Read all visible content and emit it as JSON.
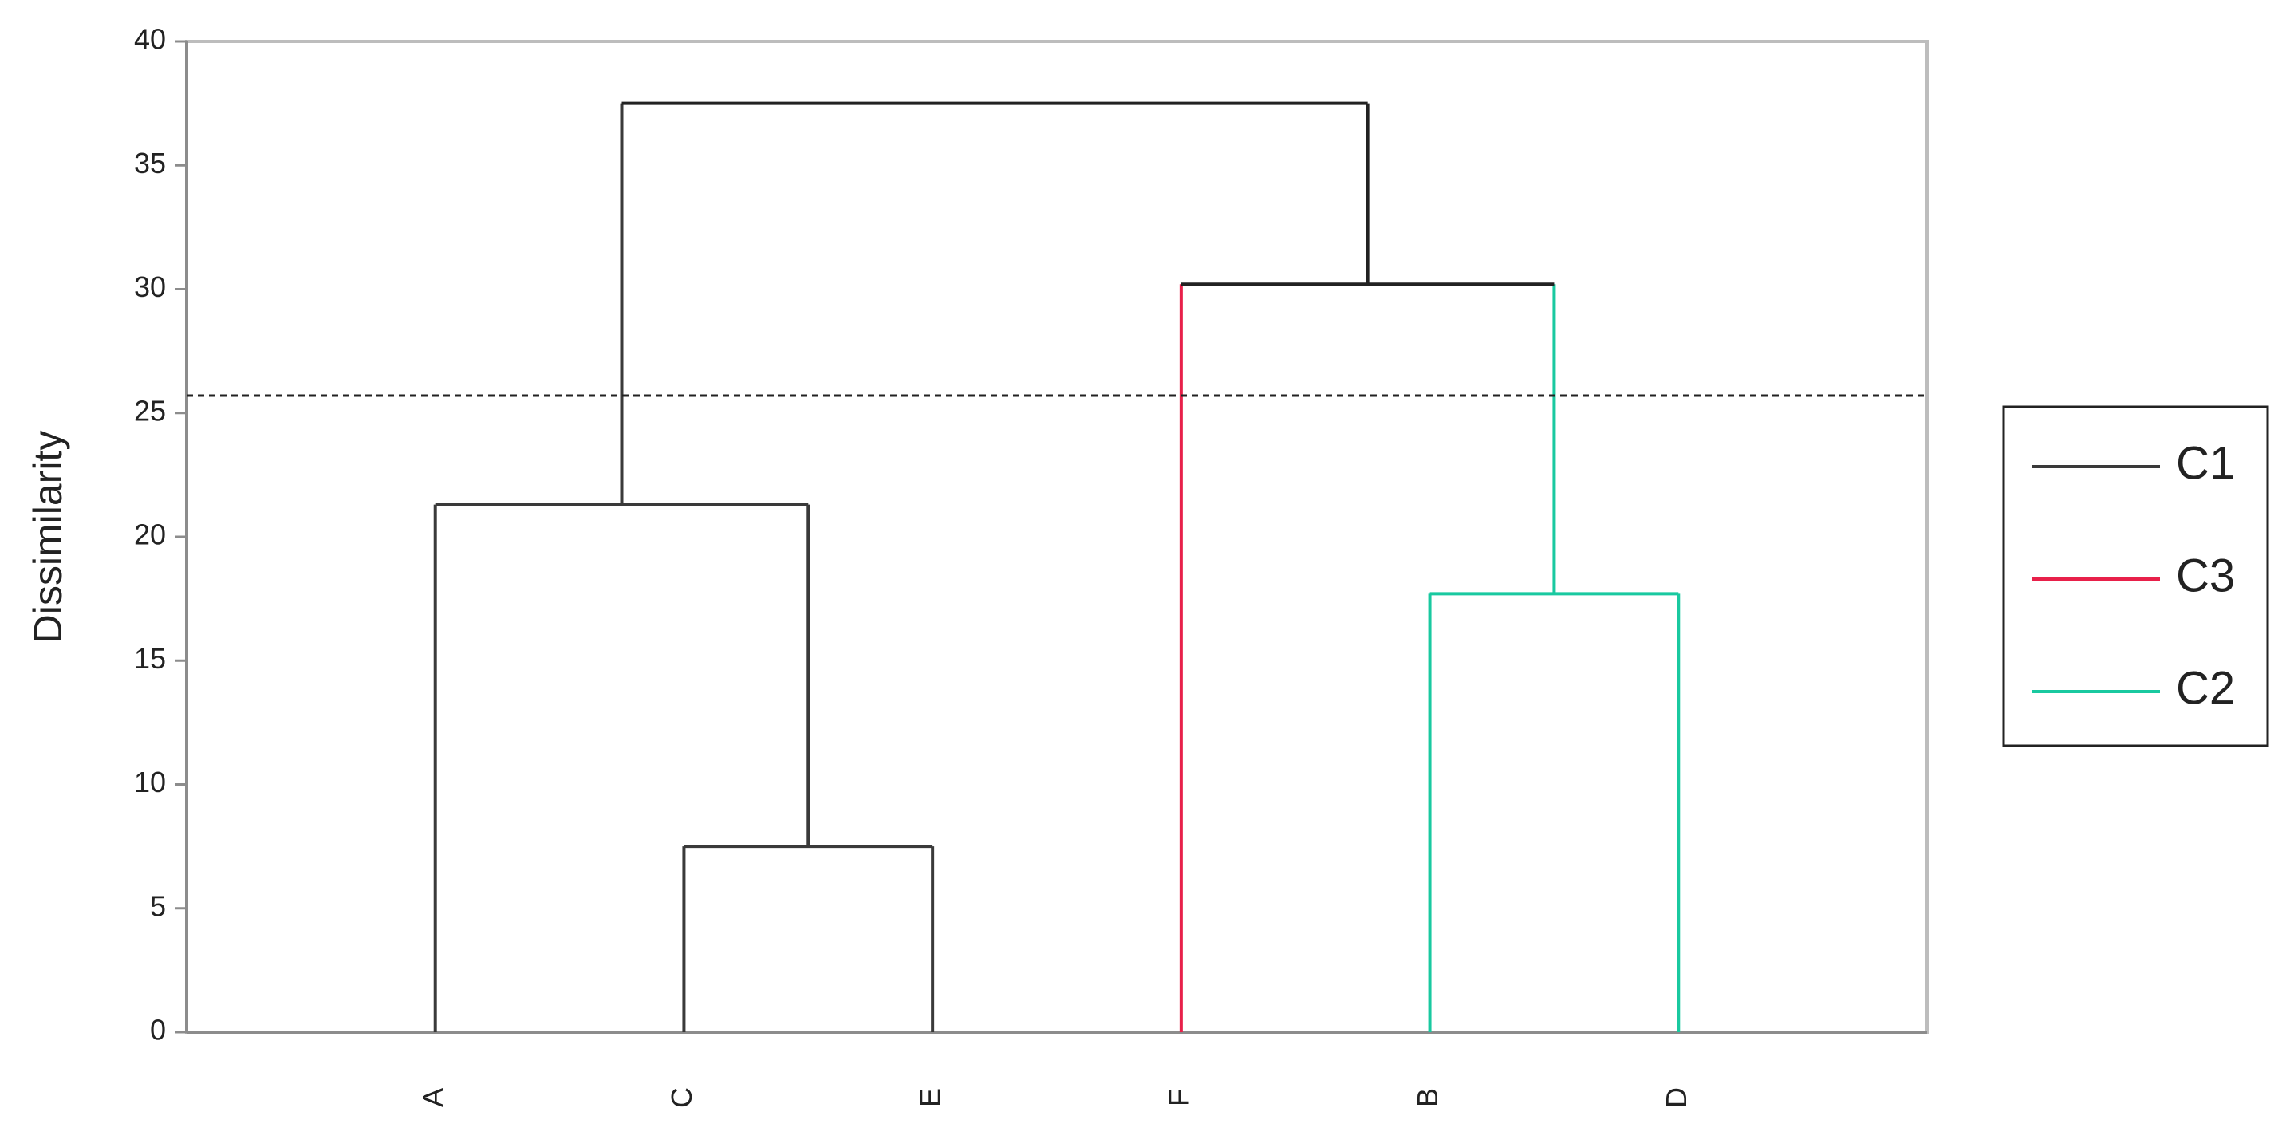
{
  "chart_data": {
    "type": "dendrogram",
    "y_label": "Dissimilarity",
    "ylim": [
      0,
      40
    ],
    "yticks": [
      0,
      5,
      10,
      15,
      20,
      25,
      30,
      35,
      40
    ],
    "cut_height": 25.7,
    "tree": {
      "height": 37.5,
      "children": [
        {
          "height": 21.3,
          "children": [
            "A",
            {
              "height": 7.5,
              "children": [
                "C",
                "E"
              ]
            }
          ]
        },
        {
          "height": 30.2,
          "children": [
            "F",
            {
              "height": 17.7,
              "children": [
                "B",
                "D"
              ]
            }
          ]
        }
      ]
    },
    "series": [
      {
        "name": "C1",
        "color": "#3a3a3a",
        "members": [
          "A",
          "C",
          "E"
        ]
      },
      {
        "name": "C3",
        "color": "#e8204a",
        "members": [
          "F"
        ]
      },
      {
        "name": "C2",
        "color": "#19c9a0",
        "members": [
          "B",
          "D"
        ]
      }
    ]
  }
}
